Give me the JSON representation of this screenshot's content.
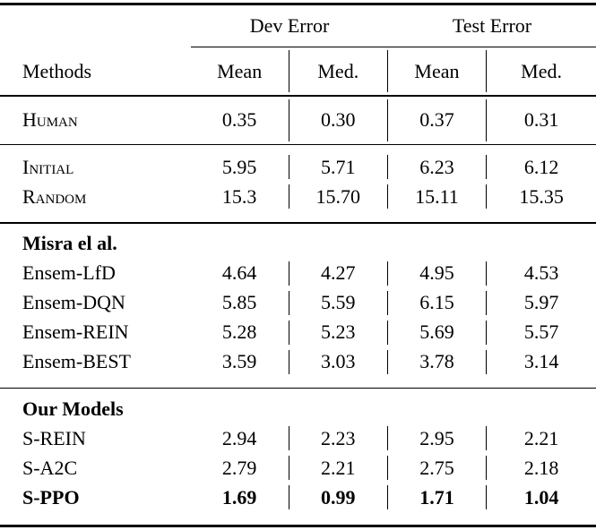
{
  "table": {
    "group_headers": [
      "Dev Error",
      "Test Error"
    ],
    "methods_header": "Methods",
    "sub_headers": [
      "Mean",
      "Med.",
      "Mean",
      "Med."
    ],
    "sections": [
      {
        "rows": [
          {
            "method": "Human",
            "values": [
              "0.35",
              "0.30",
              "0.37",
              "0.31"
            ]
          }
        ]
      },
      {
        "rows": [
          {
            "method": "Initial",
            "values": [
              "5.95",
              "5.71",
              "6.23",
              "6.12"
            ]
          },
          {
            "method": "Random",
            "values": [
              "15.3",
              "15.70",
              "15.11",
              "15.35"
            ]
          }
        ]
      },
      {
        "title": "Misra el al.",
        "rows": [
          {
            "method": "Ensem-LfD",
            "values": [
              "4.64",
              "4.27",
              "4.95",
              "4.53"
            ]
          },
          {
            "method": "Ensem-DQN",
            "values": [
              "5.85",
              "5.59",
              "6.15",
              "5.97"
            ]
          },
          {
            "method": "Ensem-REIN",
            "values": [
              "5.28",
              "5.23",
              "5.69",
              "5.57"
            ]
          },
          {
            "method": "Ensem-BEST",
            "values": [
              "3.59",
              "3.03",
              "3.78",
              "3.14"
            ]
          }
        ]
      },
      {
        "title": "Our Models",
        "rows": [
          {
            "method": "S-REIN",
            "values": [
              "2.94",
              "2.23",
              "2.95",
              "2.21"
            ]
          },
          {
            "method": "S-A2C",
            "values": [
              "2.79",
              "2.21",
              "2.75",
              "2.18"
            ]
          },
          {
            "method": "S-PPO",
            "values": [
              "1.69",
              "0.99",
              "1.71",
              "1.04"
            ]
          }
        ]
      }
    ]
  }
}
